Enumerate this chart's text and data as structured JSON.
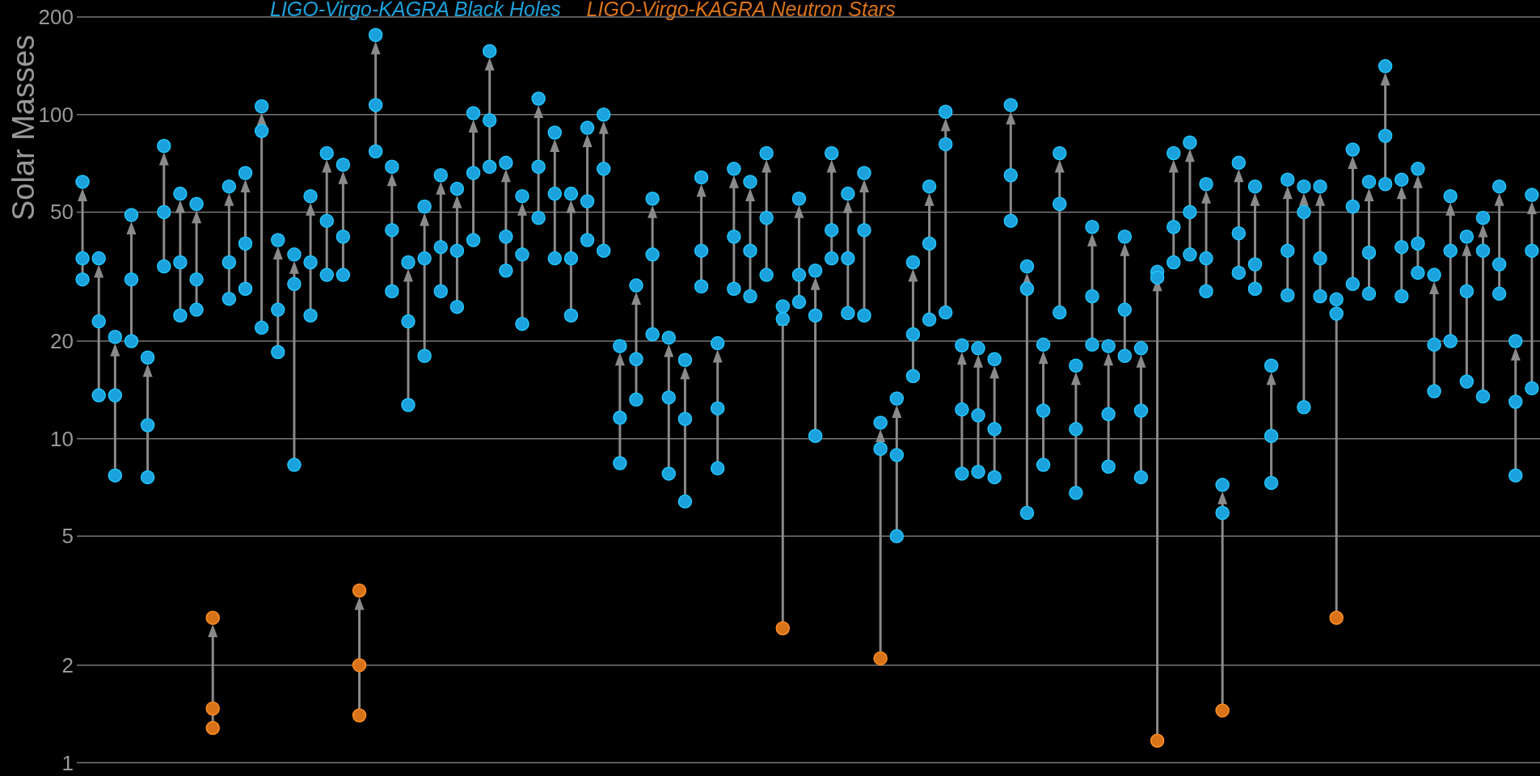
{
  "chart_data": {
    "type": "scatter",
    "ylabel": "Solar Masses",
    "log": "y",
    "grid": "y",
    "marker": "circle",
    "tick_labels": "y",
    "categories": [
      null,
      null,
      null,
      null,
      null,
      null,
      null,
      null,
      null,
      null,
      null,
      null,
      null,
      null,
      null,
      null,
      null,
      null,
      null,
      null,
      null,
      null,
      null,
      null,
      null,
      null,
      null,
      null,
      null,
      null,
      null,
      null,
      null,
      null,
      null,
      null,
      null,
      null,
      null,
      null,
      null,
      null,
      null,
      null,
      null,
      null,
      null,
      null,
      null,
      null,
      null,
      null,
      null,
      null,
      null,
      null,
      null,
      null,
      null,
      null,
      null,
      null,
      null,
      null,
      null,
      null,
      null,
      null,
      null,
      null,
      null,
      null,
      null,
      null,
      null,
      null,
      null,
      null,
      null,
      null,
      null,
      null,
      null,
      null,
      null,
      null,
      null,
      null,
      null,
      null
    ],
    "ylim": [
      0.91,
      200
    ],
    "yticks": [
      1,
      2,
      5,
      10,
      20,
      50,
      100,
      200
    ],
    "series": [
      {
        "name": "LIGO-Virgo-KAGRA Black Holes",
        "color": "#1ba1db",
        "values": [
          62,
          36,
          20.6,
          49,
          17.8,
          80,
          57,
          53,
          null,
          60,
          66,
          106,
          41,
          37,
          56,
          76,
          70,
          null,
          176,
          69,
          35,
          52,
          65,
          59,
          101,
          157,
          71,
          56,
          112,
          88,
          57,
          91,
          100,
          19.3,
          29.7,
          55,
          20.5,
          17.5,
          64,
          19.7,
          68,
          62,
          76,
          25.6,
          55,
          33,
          76,
          57,
          66,
          11.2,
          13.3,
          35,
          60,
          102,
          19.4,
          19,
          17.6,
          107,
          34,
          19.5,
          76,
          16.8,
          45,
          19.3,
          42,
          19,
          32.7,
          76,
          82,
          61,
          7.2,
          71,
          60,
          16.8,
          63,
          60,
          60,
          26.9,
          78,
          62,
          141,
          63,
          68,
          32,
          56,
          42,
          48,
          60,
          20,
          56.5
        ]
      },
      {
        "color": "#1ba1db",
        "values": [
          36,
          23,
          13.6,
          31,
          11,
          50,
          35,
          31,
          null,
          35,
          40,
          89,
          25,
          30,
          35,
          47,
          42,
          null,
          107,
          44,
          23,
          36,
          39,
          38,
          66,
          96,
          42,
          37,
          69,
          57,
          36,
          54,
          68,
          11.6,
          17.6,
          37,
          13.4,
          11.5,
          38,
          12.4,
          42,
          38,
          48,
          23.4,
          32,
          24,
          44,
          36,
          44,
          9.3,
          8.9,
          21,
          40,
          81,
          12.3,
          11.8,
          10.7,
          65,
          29,
          12.2,
          53,
          10.7,
          27.5,
          11.9,
          25,
          12.2,
          31.4,
          45,
          50,
          36,
          5.9,
          43,
          34.5,
          10.2,
          38,
          50,
          36,
          24.3,
          52,
          37.5,
          86,
          39,
          40,
          19.5,
          38,
          28.5,
          38,
          34.5,
          13,
          38
        ]
      },
      {
        "color": "#1ba1db",
        "values": [
          31,
          13.6,
          7.7,
          20,
          7.6,
          34,
          24,
          25,
          null,
          27,
          29,
          22,
          18.5,
          8.3,
          24,
          32,
          32,
          null,
          77,
          28.5,
          12.7,
          18,
          28.5,
          25.5,
          41,
          69,
          33,
          22.6,
          48,
          36,
          24,
          41,
          38,
          8.4,
          13.2,
          21,
          7.8,
          6.4,
          29.5,
          8.1,
          29,
          27.5,
          32,
          null,
          26.4,
          10.2,
          36,
          24.4,
          24,
          null,
          5,
          15.6,
          23.3,
          24.5,
          7.8,
          7.9,
          7.6,
          47,
          5.9,
          8.3,
          24.5,
          6.8,
          19.5,
          8.2,
          18,
          7.6,
          null,
          35,
          37,
          28.5,
          null,
          32.5,
          29,
          7.3,
          27.7,
          12.5,
          27.5,
          null,
          30,
          28,
          61,
          27.5,
          32.5,
          14,
          20,
          15,
          13.5,
          28,
          7.7,
          14.3
        ]
      },
      {
        "name": "LIGO-Virgo-KAGRA Neutron Stars",
        "color": "#d9731a",
        "values": [
          null,
          null,
          null,
          null,
          null,
          null,
          null,
          null,
          2.8,
          null,
          null,
          null,
          null,
          null,
          null,
          null,
          null,
          3.4,
          null,
          null,
          null,
          null,
          null,
          null,
          null,
          null,
          null,
          null,
          null,
          null,
          null,
          null,
          null,
          null,
          null,
          null,
          null,
          null,
          null,
          null,
          null,
          null,
          null,
          null,
          null,
          null,
          null,
          null,
          null,
          null,
          null,
          null,
          null,
          null,
          null,
          null,
          null,
          null,
          null,
          null,
          null,
          null,
          null,
          null,
          null,
          null,
          null,
          null,
          null,
          null,
          null,
          null,
          null,
          null,
          null,
          null,
          null,
          null,
          null,
          null,
          null,
          null,
          null,
          null,
          null,
          null,
          null,
          null,
          null,
          null
        ]
      },
      {
        "color": "#d9731a",
        "values": [
          null,
          null,
          null,
          null,
          null,
          null,
          null,
          null,
          1.47,
          null,
          null,
          null,
          null,
          null,
          null,
          null,
          null,
          2,
          null,
          null,
          null,
          null,
          null,
          null,
          null,
          null,
          null,
          null,
          null,
          null,
          null,
          null,
          null,
          null,
          null,
          null,
          null,
          null,
          null,
          null,
          null,
          null,
          null,
          null,
          null,
          null,
          null,
          null,
          null,
          null,
          null,
          null,
          null,
          null,
          null,
          null,
          null,
          null,
          null,
          null,
          null,
          null,
          null,
          null,
          null,
          null,
          null,
          null,
          null,
          null,
          null,
          null,
          null,
          null,
          null,
          null,
          null,
          null,
          null,
          null,
          null,
          null,
          null,
          null,
          null,
          null,
          null,
          null,
          null,
          null
        ]
      },
      {
        "color": "#d9731a",
        "values": [
          null,
          null,
          null,
          null,
          null,
          null,
          null,
          null,
          1.28,
          null,
          null,
          null,
          null,
          null,
          null,
          null,
          null,
          1.4,
          null,
          null,
          null,
          null,
          null,
          null,
          null,
          null,
          null,
          null,
          null,
          null,
          null,
          null,
          null,
          null,
          null,
          null,
          null,
          null,
          null,
          null,
          null,
          null,
          null,
          2.6,
          null,
          null,
          null,
          null,
          null,
          2.1,
          null,
          null,
          null,
          null,
          null,
          null,
          null,
          null,
          null,
          null,
          null,
          null,
          null,
          null,
          null,
          null,
          1.17,
          null,
          null,
          null,
          1.45,
          null,
          null,
          null,
          null,
          null,
          null,
          2.8,
          null,
          null,
          null,
          null,
          null,
          null,
          null,
          null,
          null,
          null,
          null,
          null
        ]
      }
    ]
  }
}
